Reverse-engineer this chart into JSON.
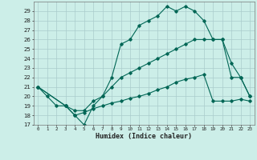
{
  "xlabel": "Humidex (Indice chaleur)",
  "bg_color": "#cceee8",
  "grid_color": "#aacccc",
  "line_color": "#006655",
  "xlim": [
    -0.5,
    23.5
  ],
  "ylim": [
    17,
    30
  ],
  "xticks": [
    0,
    1,
    2,
    3,
    4,
    5,
    6,
    7,
    8,
    9,
    10,
    11,
    12,
    13,
    14,
    15,
    16,
    17,
    18,
    19,
    20,
    21,
    22,
    23
  ],
  "yticks": [
    17,
    18,
    19,
    20,
    21,
    22,
    23,
    24,
    25,
    26,
    27,
    28,
    29
  ],
  "line1_x": [
    0,
    1,
    2,
    3,
    4,
    5,
    6,
    7,
    8,
    9,
    10,
    11,
    12,
    13,
    14,
    15,
    16,
    17,
    18,
    19,
    20,
    21,
    22,
    23
  ],
  "line1_y": [
    21,
    20,
    19,
    19,
    18,
    17,
    19,
    20,
    22,
    25.5,
    26,
    27.5,
    28,
    28.5,
    29.5,
    29,
    29.5,
    29,
    28,
    26,
    26,
    23.5,
    22,
    20
  ],
  "line2_x": [
    0,
    3,
    4,
    5,
    6,
    7,
    8,
    9,
    10,
    11,
    12,
    13,
    14,
    15,
    16,
    17,
    18,
    19,
    20,
    21,
    22,
    23
  ],
  "line2_y": [
    21,
    19,
    18.5,
    18.5,
    19.5,
    20,
    21,
    22,
    22.5,
    23,
    23.5,
    24,
    24.5,
    25,
    25.5,
    26,
    26,
    26,
    26,
    22,
    22,
    20
  ],
  "line3_x": [
    0,
    3,
    4,
    5,
    6,
    7,
    8,
    9,
    10,
    11,
    12,
    13,
    14,
    15,
    16,
    17,
    18,
    19,
    20,
    21,
    22,
    23
  ],
  "line3_y": [
    21,
    19,
    18,
    18.3,
    18.7,
    19,
    19.3,
    19.5,
    19.8,
    20,
    20.3,
    20.7,
    21,
    21.5,
    21.8,
    22,
    22.3,
    19.5,
    19.5,
    19.5,
    19.7,
    19.5
  ]
}
